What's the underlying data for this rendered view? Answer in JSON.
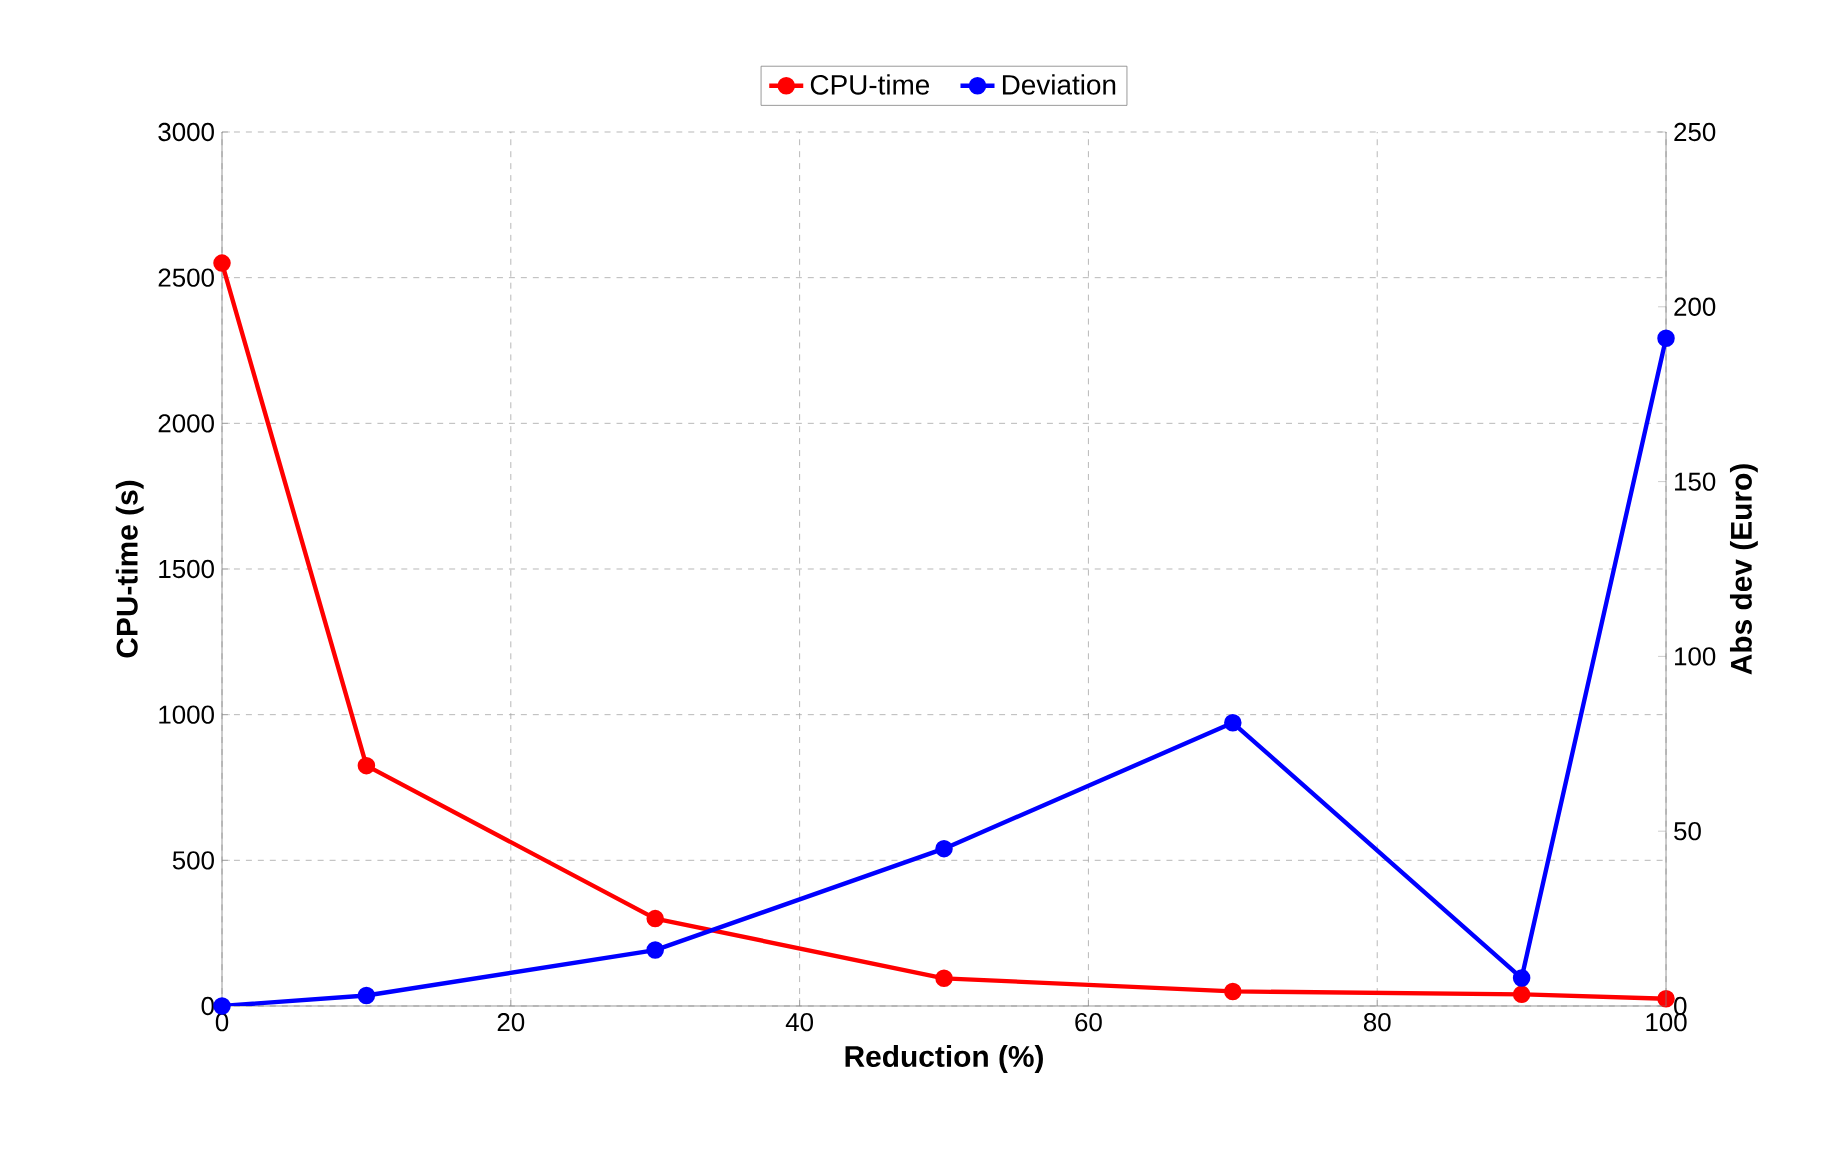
{
  "chart_data": {
    "type": "line",
    "xlabel": "Reduction (%)",
    "ylabel": "CPU-time (s)",
    "y2label": "Abs dev (Euro)",
    "x": [
      0,
      10,
      30,
      50,
      70,
      90,
      100
    ],
    "series": [
      {
        "name": "CPU-time",
        "color": "#ff0000",
        "values": [
          2550,
          825,
          300,
          95,
          50,
          40,
          25
        ]
      },
      {
        "name": "Deviation",
        "color": "#0000ff",
        "axis": "y2",
        "values": [
          0,
          3,
          16,
          45,
          81,
          8,
          191
        ]
      }
    ],
    "xlim": [
      0,
      100
    ],
    "xticks": [
      0,
      20,
      40,
      60,
      80,
      100
    ],
    "ylim": [
      0,
      3000
    ],
    "yticks": [
      0,
      500,
      1000,
      1500,
      2000,
      2500,
      3000
    ],
    "y2lim": [
      0,
      250
    ],
    "y2ticks": [
      0,
      50,
      100,
      150,
      200,
      250
    ],
    "grid": true,
    "legend": "top",
    "marker": "circle",
    "line_style": "solid"
  }
}
